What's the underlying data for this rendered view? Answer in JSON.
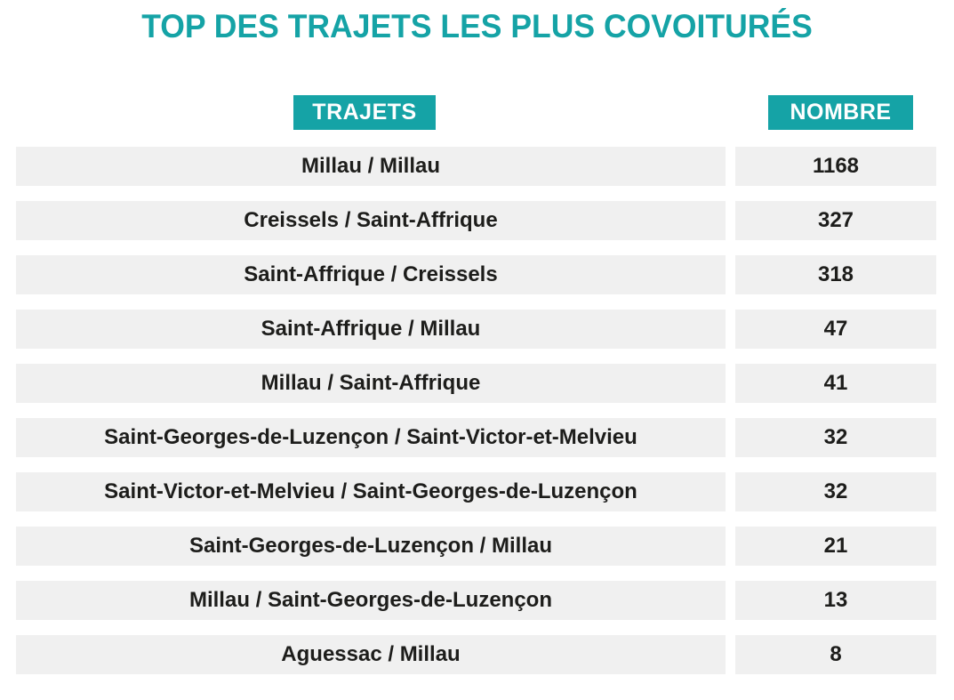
{
  "title": "TOP DES TRAJETS LES PLUS COVOITURÉS",
  "colors": {
    "teal": "#15a3a6",
    "row_background": "#f0f0f0",
    "text": "#1d1d1b"
  },
  "table": {
    "headers": {
      "trajets": "TRAJETS",
      "nombre": "NOMBRE"
    },
    "rows": [
      {
        "trajet": "Millau / Millau",
        "nombre": "1168"
      },
      {
        "trajet": "Creissels / Saint-Affrique",
        "nombre": "327"
      },
      {
        "trajet": "Saint-Affrique / Creissels",
        "nombre": "318"
      },
      {
        "trajet": "Saint-Affrique / Millau",
        "nombre": "47"
      },
      {
        "trajet": "Millau / Saint-Affrique",
        "nombre": "41"
      },
      {
        "trajet": "Saint-Georges-de-Luzençon / Saint-Victor-et-Melvieu",
        "nombre": "32"
      },
      {
        "trajet": "Saint-Victor-et-Melvieu / Saint-Georges-de-Luzençon",
        "nombre": "32"
      },
      {
        "trajet": "Saint-Georges-de-Luzençon / Millau",
        "nombre": "21"
      },
      {
        "trajet": "Millau / Saint-Georges-de-Luzençon",
        "nombre": "13"
      },
      {
        "trajet": "Aguessac / Millau",
        "nombre": "8"
      }
    ]
  },
  "chart_data": {
    "type": "table",
    "title": "TOP DES TRAJETS LES PLUS COVOITURÉS",
    "columns": [
      "TRAJETS",
      "NOMBRE"
    ],
    "rows": [
      [
        "Millau / Millau",
        1168
      ],
      [
        "Creissels / Saint-Affrique",
        327
      ],
      [
        "Saint-Affrique / Creissels",
        318
      ],
      [
        "Saint-Affrique / Millau",
        47
      ],
      [
        "Millau / Saint-Affrique",
        41
      ],
      [
        "Saint-Georges-de-Luzençon / Saint-Victor-et-Melvieu",
        32
      ],
      [
        "Saint-Victor-et-Melvieu / Saint-Georges-de-Luzençon",
        32
      ],
      [
        "Saint-Georges-de-Luzençon / Millau",
        21
      ],
      [
        "Millau / Saint-Georges-de-Luzençon",
        13
      ],
      [
        "Aguessac / Millau",
        8
      ]
    ],
    "layout": {
      "header_style": "white-on-teal badges",
      "row_style": "light-gray bands, centered bold text",
      "value_column_position": "right"
    }
  }
}
